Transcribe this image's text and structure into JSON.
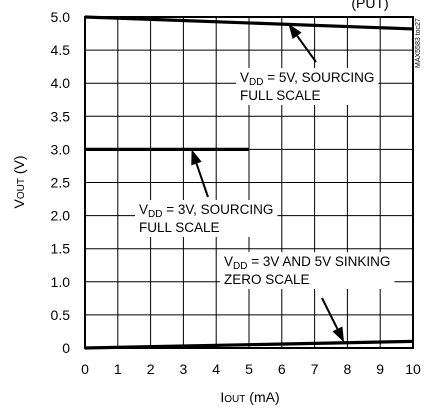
{
  "chart_data": {
    "type": "line",
    "title_partial": "(PUT)",
    "xlabel_main": "I",
    "xlabel_sub": "OUT",
    "xlabel_unit": " (mA)",
    "ylabel_main": "V",
    "ylabel_sub": "OUT",
    "ylabel_unit": " (V)",
    "xlim": [
      0,
      10
    ],
    "ylim": [
      0,
      5
    ],
    "x_ticks": [
      "0",
      "1",
      "2",
      "3",
      "4",
      "5",
      "6",
      "7",
      "8",
      "9",
      "10"
    ],
    "y_ticks": [
      "0",
      "0.5",
      "1.0",
      "1.5",
      "2.0",
      "2.5",
      "3.0",
      "3.5",
      "4.0",
      "4.5",
      "5.0"
    ],
    "grid": true,
    "series": [
      {
        "x": [
          0,
          10
        ],
        "y": [
          5.0,
          4.82
        ]
      },
      {
        "x": [
          0,
          5
        ],
        "y": [
          3.0,
          3.0
        ]
      },
      {
        "x": [
          0,
          10
        ],
        "y": [
          0.0,
          0.1
        ]
      }
    ],
    "annotations": [
      {
        "lines": [
          {
            "parts": [
              {
                "t": "V"
              },
              {
                "t": "DD",
                "sub": true
              },
              {
                "t": " = 5V, SOURCING"
              }
            ]
          },
          {
            "parts": [
              {
                "t": "FULL SCALE"
              }
            ]
          }
        ]
      },
      {
        "lines": [
          {
            "parts": [
              {
                "t": "V"
              },
              {
                "t": "DD",
                "sub": true
              },
              {
                "t": " = 3V, SOURCING"
              }
            ]
          },
          {
            "parts": [
              {
                "t": "FULL SCALE"
              }
            ]
          }
        ]
      },
      {
        "lines": [
          {
            "parts": [
              {
                "t": "V"
              },
              {
                "t": "DD",
                "sub": true
              },
              {
                "t": " = 3V AND 5V SINKING"
              }
            ]
          },
          {
            "parts": [
              {
                "t": "ZERO SCALE"
              }
            ]
          }
        ]
      }
    ],
    "side_label": "MAX5583 toc27"
  }
}
